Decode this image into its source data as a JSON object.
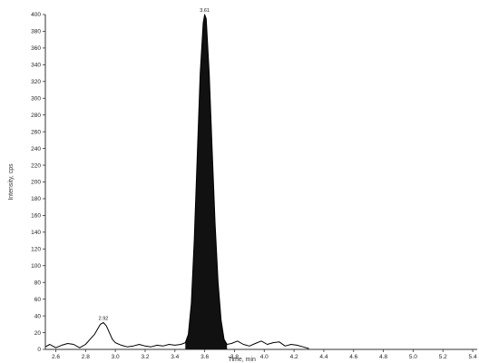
{
  "chart_data": {
    "type": "line",
    "title": "",
    "xlabel": "Time, min",
    "ylabel": "Intensity, cps",
    "xlim": [
      2.53,
      5.43
    ],
    "ylim": [
      0,
      400
    ],
    "x_ticks": [
      "2.6",
      "2.8",
      "3.0",
      "3.2",
      "3.4",
      "3.6",
      "3.8",
      "4.0",
      "4.2",
      "4.4",
      "4.6",
      "4.8",
      "5.0",
      "5.2",
      "5.4"
    ],
    "y_ticks": [
      "0",
      "20",
      "40",
      "60",
      "80",
      "100",
      "120",
      "140",
      "160",
      "180",
      "200",
      "220",
      "240",
      "260",
      "280",
      "300",
      "320",
      "340",
      "360",
      "380",
      "400"
    ],
    "grid": false,
    "series": [
      {
        "x": [
          2.53,
          2.56,
          2.6,
          2.64,
          2.68,
          2.72,
          2.76,
          2.8,
          2.83,
          2.86,
          2.88,
          2.9,
          2.92,
          2.94,
          2.96,
          2.98,
          3.0,
          3.04,
          3.08,
          3.12,
          3.16,
          3.2,
          3.24,
          3.28,
          3.32,
          3.36,
          3.4,
          3.44,
          3.47,
          3.49,
          3.51,
          3.53,
          3.55,
          3.57,
          3.59,
          3.6,
          3.61,
          3.63,
          3.65,
          3.67,
          3.69,
          3.71,
          3.73,
          3.75,
          3.78,
          3.82,
          3.86,
          3.9,
          3.94,
          3.98,
          4.02,
          4.06,
          4.1,
          4.14,
          4.18,
          4.22,
          4.26,
          4.3
        ],
        "y": [
          3,
          6,
          2,
          5,
          7,
          6,
          2,
          6,
          12,
          18,
          24,
          30,
          32,
          28,
          20,
          12,
          8,
          5,
          3,
          4,
          6,
          4,
          3,
          5,
          4,
          6,
          5,
          6,
          8,
          18,
          55,
          130,
          230,
          330,
          390,
          400,
          395,
          330,
          240,
          150,
          80,
          35,
          12,
          6,
          7,
          10,
          6,
          4,
          7,
          10,
          6,
          8,
          9,
          4,
          6,
          5,
          3,
          1
        ]
      }
    ],
    "shaded_peak": {
      "x_start": 3.47,
      "x_end": 3.75
    },
    "peak_labels": [
      {
        "text": "2.92",
        "x": 2.92,
        "y": 32
      },
      {
        "text": "3.61",
        "x": 3.6,
        "y": 400
      }
    ],
    "colors": {
      "line": "#000000",
      "fill": "#111111",
      "axis": "#333333"
    }
  }
}
